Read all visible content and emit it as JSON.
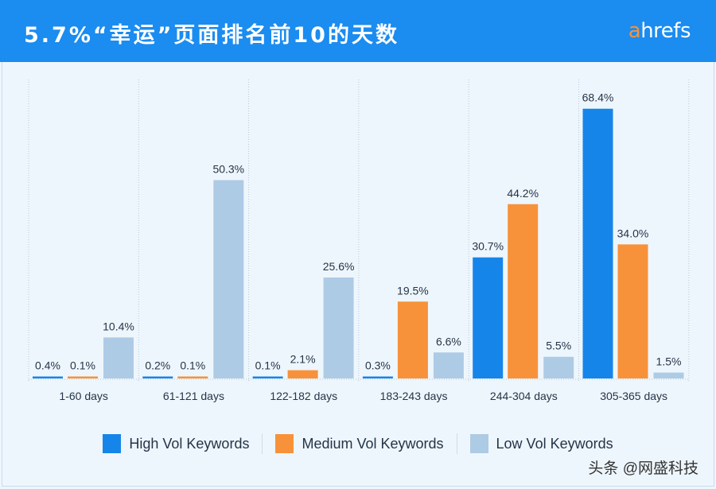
{
  "header": {
    "title": "5.7%“幸运”页面排名前10的天数",
    "logo_prefix": "a",
    "logo_suffix": "hrefs"
  },
  "watermark": "头条 @网盛科技",
  "colors": {
    "high": "#1685ea",
    "medium": "#f7923a",
    "low": "#aecbe5",
    "header": "#1b8cf0"
  },
  "chart_data": {
    "type": "bar",
    "categories": [
      "1-60 days",
      "61-121 days",
      "122-182 days",
      "183-243 days",
      "244-304 days",
      "305-365 days"
    ],
    "series": [
      {
        "name": "High Vol Keywords",
        "values": [
          0.4,
          0.2,
          0.1,
          0.3,
          30.7,
          68.4
        ],
        "labels": [
          "0.4%",
          "0.2%",
          "0.1%",
          "0.3%",
          "30.7%",
          "68.4%"
        ]
      },
      {
        "name": "Medium Vol Keywords",
        "values": [
          0.1,
          0.1,
          2.1,
          19.5,
          44.2,
          34.0
        ],
        "labels": [
          "0.1%",
          "0.1%",
          "2.1%",
          "19.5%",
          "44.2%",
          "34.0%"
        ]
      },
      {
        "name": "Low Vol Keywords",
        "values": [
          10.4,
          50.3,
          25.6,
          6.6,
          5.5,
          1.5
        ],
        "labels": [
          "10.4%",
          "50.3%",
          "25.6%",
          "6.6%",
          "5.5%",
          "1.5%"
        ]
      }
    ],
    "ylim": [
      0,
      70
    ],
    "grid": "vertical dotted separators",
    "legend": "bottom"
  }
}
